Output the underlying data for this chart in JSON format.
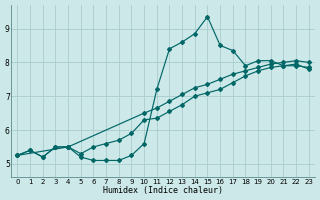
{
  "xlabel": "Humidex (Indice chaleur)",
  "bg_color": "#cce8e8",
  "grid_color": "#aacccc",
  "line_color": "#006666",
  "xlim": [
    -0.5,
    23.5
  ],
  "ylim": [
    4.6,
    9.7
  ],
  "xticks": [
    0,
    1,
    2,
    3,
    4,
    5,
    6,
    7,
    8,
    9,
    10,
    11,
    12,
    13,
    14,
    15,
    16,
    17,
    18,
    19,
    20,
    21,
    22,
    23
  ],
  "yticks": [
    5,
    6,
    7,
    8,
    9
  ],
  "curve1_x": [
    0,
    1,
    2,
    3,
    4,
    5,
    6,
    7,
    8,
    9,
    10,
    11,
    12,
    13,
    14,
    15,
    16,
    17,
    18,
    19,
    20,
    21,
    22,
    23
  ],
  "curve1_y": [
    5.25,
    5.4,
    5.2,
    5.5,
    5.5,
    5.2,
    5.1,
    5.1,
    5.1,
    5.25,
    5.6,
    7.2,
    8.4,
    8.6,
    8.85,
    9.35,
    8.5,
    8.35,
    7.9,
    8.05,
    8.05,
    7.9,
    7.9,
    7.85
  ],
  "curve2_x": [
    0,
    4,
    10,
    11,
    12,
    13,
    14,
    15,
    16,
    17,
    18,
    19,
    20,
    21,
    22,
    23
  ],
  "curve2_y": [
    5.25,
    5.5,
    6.5,
    6.65,
    6.85,
    7.05,
    7.25,
    7.35,
    7.5,
    7.65,
    7.75,
    7.85,
    7.95,
    8.0,
    8.05,
    8.0
  ],
  "curve3_x": [
    0,
    1,
    2,
    3,
    4,
    5,
    6,
    7,
    8,
    9,
    10,
    11,
    12,
    13,
    14,
    15,
    16,
    17,
    18,
    19,
    20,
    21,
    22,
    23
  ],
  "curve3_y": [
    5.25,
    5.4,
    5.2,
    5.5,
    5.5,
    5.3,
    5.5,
    5.6,
    5.7,
    5.9,
    6.3,
    6.35,
    6.55,
    6.75,
    7.0,
    7.1,
    7.2,
    7.4,
    7.6,
    7.75,
    7.85,
    7.9,
    7.95,
    7.8
  ]
}
